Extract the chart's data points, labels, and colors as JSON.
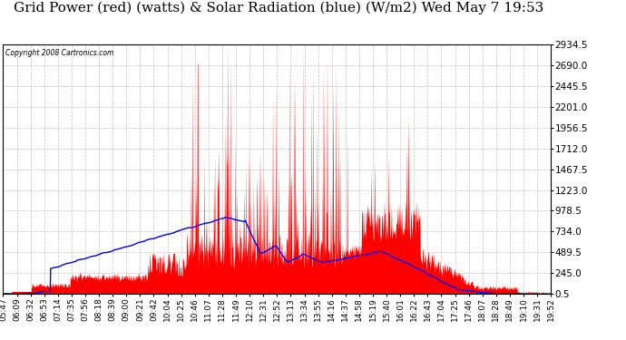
{
  "title": "Grid Power (red) (watts) & Solar Radiation (blue) (W/m2) Wed May 7 19:53",
  "copyright_text": "Copyright 2008 Cartronics.com",
  "yticks": [
    0.5,
    245.0,
    489.5,
    734.0,
    978.5,
    1223.0,
    1467.5,
    1712.0,
    1956.5,
    2201.0,
    2445.5,
    2690.0,
    2934.5
  ],
  "ymax": 2934.5,
  "background_color": "#ffffff",
  "plot_bg_color": "#ffffff",
  "grid_color": "#bbbbbb",
  "title_fontsize": 11,
  "x_label_fontsize": 6.5,
  "y_label_fontsize": 7.5,
  "xtick_labels": [
    "05:47",
    "06:09",
    "06:32",
    "06:53",
    "07:14",
    "07:35",
    "07:56",
    "08:18",
    "08:39",
    "09:00",
    "09:21",
    "09:42",
    "10:04",
    "10:25",
    "10:46",
    "11:07",
    "11:28",
    "11:49",
    "12:10",
    "12:31",
    "12:52",
    "13:13",
    "13:34",
    "13:55",
    "14:16",
    "14:37",
    "14:58",
    "15:19",
    "15:40",
    "16:01",
    "16:22",
    "16:43",
    "17:04",
    "17:25",
    "17:46",
    "18:07",
    "18:28",
    "18:49",
    "19:10",
    "19:31",
    "19:52"
  ]
}
